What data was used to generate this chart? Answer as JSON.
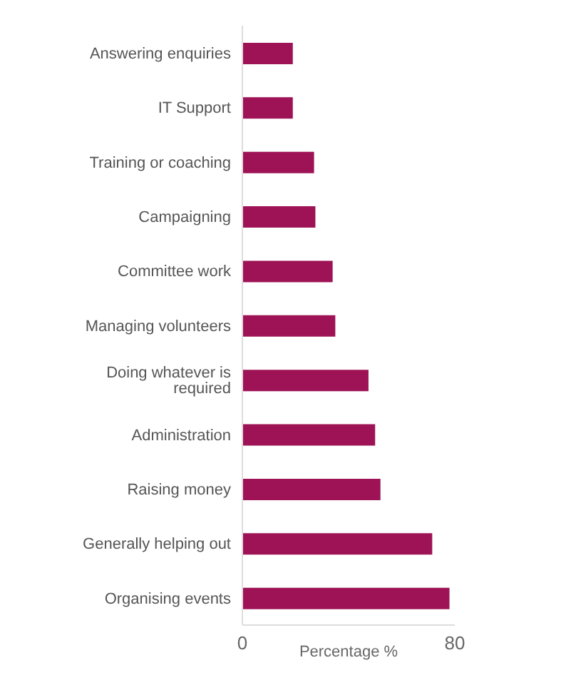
{
  "chart_data": {
    "type": "bar",
    "orientation": "horizontal",
    "categories": [
      "Answering enquiries",
      "IT Support",
      "Training or coaching",
      "Campaigning",
      "Committee work",
      "Managing volunteers",
      "Doing whatever is required",
      "Administration",
      "Raising money",
      "Generally helping out",
      "Organising events"
    ],
    "values": [
      19,
      19,
      27,
      27.5,
      34,
      35,
      47.5,
      50,
      52,
      71.5,
      78
    ],
    "color": "#9e1356",
    "xlim": [
      0,
      80
    ],
    "xticks": [
      0,
      80
    ],
    "xlabel": "Percentage %",
    "grid": false,
    "legend": false
  }
}
